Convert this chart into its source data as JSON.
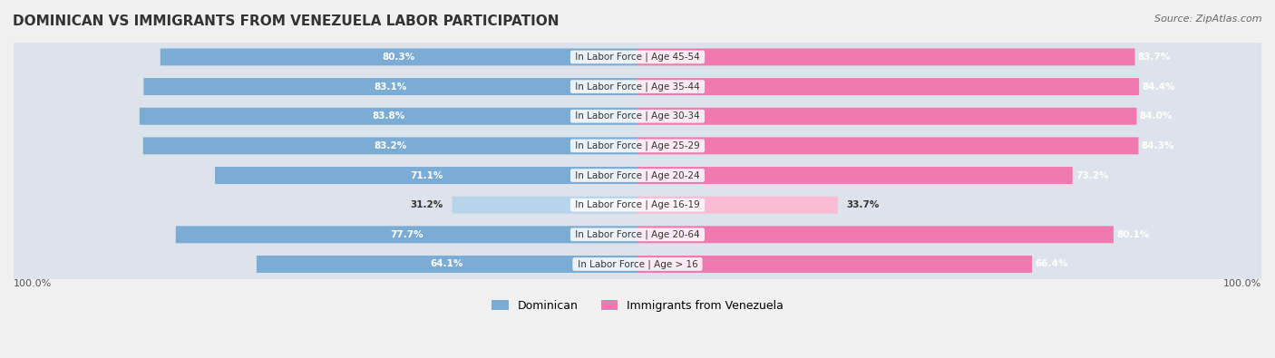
{
  "title": "DOMINICAN VS IMMIGRANTS FROM VENEZUELA LABOR PARTICIPATION",
  "source": "Source: ZipAtlas.com",
  "categories": [
    "In Labor Force | Age > 16",
    "In Labor Force | Age 20-64",
    "In Labor Force | Age 16-19",
    "In Labor Force | Age 20-24",
    "In Labor Force | Age 25-29",
    "In Labor Force | Age 30-34",
    "In Labor Force | Age 35-44",
    "In Labor Force | Age 45-54"
  ],
  "dominican": [
    64.1,
    77.7,
    31.2,
    71.1,
    83.2,
    83.8,
    83.1,
    80.3
  ],
  "venezuela": [
    66.4,
    80.1,
    33.7,
    73.2,
    84.3,
    84.0,
    84.4,
    83.7
  ],
  "dominican_color": "#7aacd6",
  "venezuela_color": "#f07ab0",
  "dominican_light_color": "#b8d4ea",
  "venezuela_light_color": "#f9bcd4",
  "bg_color": "#f0f0f0",
  "row_bg_color": "#e8e8e8",
  "bar_height": 0.55,
  "legend_dominican": "Dominican",
  "legend_venezuela": "Immigrants from Venezuela",
  "axis_label_left": "100.0%",
  "axis_label_right": "100.0%",
  "max_val": 100.0
}
